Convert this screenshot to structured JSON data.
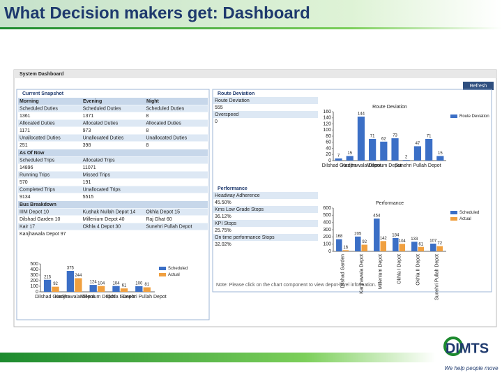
{
  "title": "What Decision makers get: Dashboard",
  "dashboard": {
    "header": "System Dashboard",
    "refresh": "Refresh",
    "snapshot": {
      "tab": "Current Snapshot",
      "columns": [
        "Morning",
        "Evening",
        "Night"
      ],
      "rows": [
        [
          "Scheduled Duties",
          "Scheduled Duties",
          "Scheduled Duties"
        ],
        [
          "1361",
          "1371",
          "8"
        ],
        [
          "Allocated Duties",
          "Allocated Duties",
          "Allocated Duties"
        ],
        [
          "1171",
          "973",
          "8"
        ],
        [
          "Unallocated Duties",
          "Unallocated Duties",
          "Unallocated Duties"
        ],
        [
          "251",
          "398",
          "8"
        ]
      ],
      "as_of_now": "As Of Now",
      "now_rows": [
        [
          "Scheduled Trips",
          "Allocated Trips"
        ],
        [
          "14896",
          "11071"
        ],
        [
          "Running Trips",
          "Missed Trips"
        ],
        [
          "570",
          "191"
        ],
        [
          "Completed Trips",
          "Unallocated Trips"
        ],
        [
          "9134",
          "5515"
        ]
      ],
      "breakdown": "Bus Breakdown",
      "breakdown_rows": [
        [
          "IIIM Depot 10",
          "Kushak Nullah Depot 14",
          "Okhla Depot 15"
        ],
        [
          "Dilshad Garden 10",
          "Millenium Depot 40",
          "Raj Ghat 60"
        ],
        [
          "Kair 17",
          "Okhla 4 Depot 30",
          "Sunehri Pullah Depot"
        ],
        [
          "Kanjhawala Depot 97"
        ]
      ]
    },
    "route": {
      "tab": "Route Deviation",
      "items": [
        [
          "Route Deviation",
          "555"
        ],
        [
          "Overspeed",
          "0"
        ]
      ]
    },
    "performance": {
      "tab": "Performance",
      "items": [
        [
          "Headway Adherence",
          "45.50%"
        ],
        [
          "Kms Low Grade Stops",
          "36.12%"
        ],
        [
          "KPI Stops",
          "25.75%"
        ],
        [
          "On time performance Stops",
          "32.02%"
        ]
      ]
    },
    "note": "Note: Please click on the chart component to view depot-level information."
  },
  "chart_data": [
    {
      "type": "bar",
      "categories": [
        "Dilshad Garden",
        "Kanjhawala Depot",
        "Millenium Depot",
        "Okhla I Depot",
        "Sunehri Pullah Depot"
      ],
      "series": [
        {
          "name": "Scheduled",
          "color": "#3b6fc6",
          "values": [
            215,
            375,
            124,
            104,
            100
          ]
        },
        {
          "name": "Actual",
          "color": "#f0a040",
          "values": [
            92,
            244,
            104,
            61,
            81
          ]
        }
      ],
      "ylim": [
        0,
        500
      ],
      "yticks": [
        0,
        100,
        200,
        300,
        400,
        500
      ],
      "legend": "right",
      "grid": false
    },
    {
      "type": "bar",
      "title": "Route Deviation",
      "categories": [
        "Dilshad Garden",
        null,
        "Kanjhawala Depot",
        null,
        "Millenium Depot",
        null,
        null,
        "Sunehri Pullah Depot",
        null,
        null
      ],
      "series": [
        {
          "name": "Route Deviation",
          "color": "#3b6fc6",
          "values": [
            7,
            15,
            144,
            71,
            62,
            73,
            2,
            47,
            71,
            15
          ]
        }
      ],
      "ylim": [
        0,
        160
      ],
      "yticks": [
        0,
        20,
        40,
        60,
        80,
        100,
        120,
        140,
        160
      ],
      "legend": "right",
      "grid": false
    },
    {
      "type": "bar",
      "title": "Performance",
      "categories": [
        "Dilshad Garden",
        "Kanjhawala Depot",
        "Millenium Depot",
        "Okhla I Depot",
        "Okhla II Depot",
        "Sunehri Pullah Depot"
      ],
      "series": [
        {
          "name": "Scheduled",
          "color": "#3b6fc6",
          "values": [
            168,
            205,
            454,
            184,
            133,
            107
          ]
        },
        {
          "name": "Actual",
          "color": "#f0a040",
          "values": [
            16,
            92,
            142,
            104,
            61,
            72
          ]
        }
      ],
      "ylim": [
        0,
        600
      ],
      "yticks": [
        0,
        100,
        200,
        300,
        400,
        500,
        600
      ],
      "legend": "right",
      "grid": false
    }
  ],
  "footer": {
    "logo": "DIMTS",
    "tagline": "We help people move"
  }
}
